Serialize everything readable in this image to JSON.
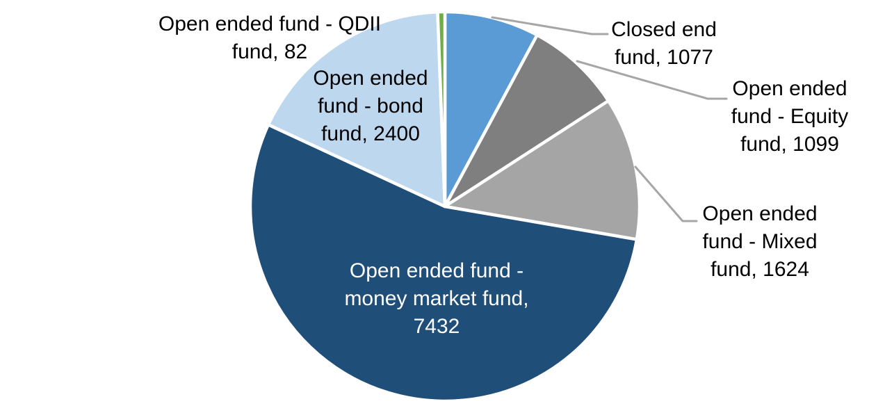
{
  "chart_data": {
    "type": "pie",
    "title": "",
    "start_angle_deg": 0,
    "direction": "clockwise",
    "background_color": "#FFFFFF",
    "slice_border_color": "#FFFFFF",
    "leader_line_color": "#A6A6A6",
    "label_text_color": "#000000",
    "segments": [
      {
        "name": "Closed end fund",
        "value": 1077,
        "color": "#5B9BD5",
        "label_lines": [
          "Closed end",
          "fund, 1077"
        ],
        "label_color": "#000000"
      },
      {
        "name": "Open ended fund - Equity fund",
        "value": 1099,
        "color": "#7F7F7F",
        "label_lines": [
          "Open ended",
          "fund - Equity",
          "fund, 1099"
        ],
        "label_color": "#000000"
      },
      {
        "name": "Open ended fund - Mixed fund",
        "value": 1624,
        "color": "#A5A5A5",
        "label_lines": [
          "Open ended",
          "fund - Mixed",
          "fund, 1624"
        ],
        "label_color": "#000000"
      },
      {
        "name": "Open ended fund - money market fund",
        "value": 7432,
        "color": "#1F4E79",
        "label_lines": [
          "Open ended fund -",
          "money market fund,",
          "7432"
        ],
        "label_color": "#FFFFFF"
      },
      {
        "name": "Open ended fund - bond fund",
        "value": 2400,
        "color": "#BDD7EE",
        "label_lines": [
          "Open ended",
          "fund - bond",
          "fund, 2400"
        ],
        "label_color": "#000000"
      },
      {
        "name": "Open ended fund - QDII fund",
        "value": 82,
        "color": "#70AD47",
        "label_lines": [
          "Open ended fund - QDII",
          "fund, 82"
        ],
        "label_color": "#000000"
      }
    ]
  }
}
